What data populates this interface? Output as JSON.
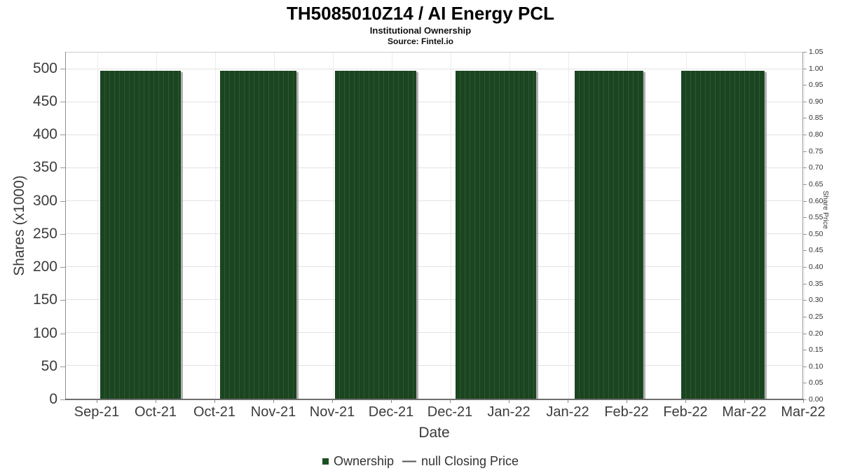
{
  "header": {
    "title": "TH5085010Z14 / AI Energy PCL",
    "subtitle": "Institutional Ownership",
    "source": "Source: Fintel.io"
  },
  "chart_data": {
    "type": "bar",
    "title": "TH5085010Z14 / AI Energy PCL",
    "subtitle": "Institutional Ownership",
    "source": "Source: Fintel.io",
    "grid": true,
    "legend_position": "bottom",
    "x_axis": {
      "label": "Date",
      "tick_labels": [
        "Sep-21",
        "Oct-21",
        "Oct-21",
        "Nov-21",
        "Nov-21",
        "Dec-21",
        "Dec-21",
        "Jan-22",
        "Jan-22",
        "Feb-22",
        "Feb-22",
        "Mar-22",
        "Mar-22"
      ]
    },
    "y_axis_left": {
      "label": "Shares (x1000)",
      "ticks": [
        0,
        50,
        100,
        150,
        200,
        250,
        300,
        350,
        400,
        450,
        500
      ],
      "max": 525
    },
    "y_axis_right": {
      "label": "Share Price",
      "ticks": [
        "0.00",
        "0.05",
        "0.10",
        "0.15",
        "0.20",
        "0.25",
        "0.30",
        "0.35",
        "0.40",
        "0.45",
        "0.50",
        "0.55",
        "0.60",
        "0.65",
        "0.70",
        "0.75",
        "0.80",
        "0.85",
        "0.90",
        "0.95",
        "1.00",
        "1.05"
      ],
      "max": 1.05
    },
    "series": [
      {
        "name": "Ownership",
        "type": "column",
        "color": "#1a4520",
        "stripe_color": "#2d5832",
        "bars": [
          {
            "left_pct": 4.65,
            "width_pct": 10.92,
            "value": 497
          },
          {
            "left_pct": 20.89,
            "width_pct": 10.45,
            "value": 497
          },
          {
            "left_pct": 36.56,
            "width_pct": 11.02,
            "value": 497
          },
          {
            "left_pct": 52.9,
            "width_pct": 10.92,
            "value": 497
          },
          {
            "left_pct": 69.04,
            "width_pct": 9.4,
            "value": 497
          },
          {
            "left_pct": 83.57,
            "width_pct": 11.3,
            "value": 497
          }
        ]
      },
      {
        "name": "null Closing Price",
        "type": "line",
        "color": "#555555",
        "values": []
      }
    ]
  },
  "legend": {
    "items": [
      {
        "marker": "square",
        "color": "#1d4f23",
        "label": "Ownership"
      },
      {
        "marker": "dash",
        "marker_glyph": "—",
        "color": "#555555",
        "label": "null Closing Price"
      }
    ]
  }
}
